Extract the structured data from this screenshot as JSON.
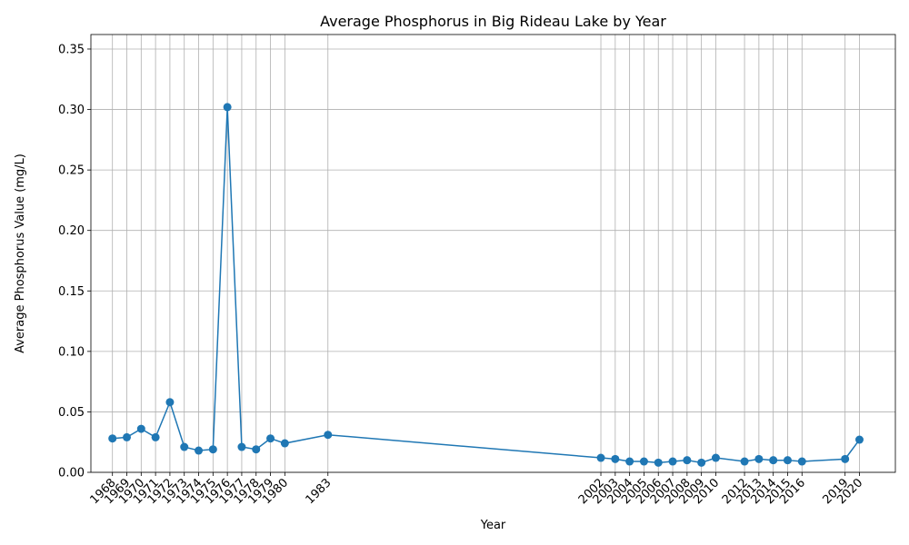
{
  "chart_data": {
    "type": "line",
    "title": "Average Phosphorus in Big Rideau Lake by Year",
    "xlabel": "Year",
    "ylabel": "Average Phosphorus Value (mg/L)",
    "x": [
      1968,
      1969,
      1970,
      1971,
      1972,
      1973,
      1974,
      1975,
      1976,
      1977,
      1978,
      1979,
      1980,
      1983,
      2002,
      2003,
      2004,
      2005,
      2006,
      2007,
      2008,
      2009,
      2010,
      2012,
      2013,
      2014,
      2015,
      2016,
      2019,
      2020
    ],
    "y": [
      0.028,
      0.029,
      0.036,
      0.029,
      0.058,
      0.021,
      0.018,
      0.019,
      0.302,
      0.021,
      0.019,
      0.028,
      0.024,
      0.031,
      0.012,
      0.011,
      0.009,
      0.009,
      0.008,
      0.009,
      0.01,
      0.008,
      0.012,
      0.009,
      0.011,
      0.01,
      0.01,
      0.009,
      0.011,
      0.027
    ],
    "x_ticks": [
      "1968",
      "1969",
      "1970",
      "1971",
      "1972",
      "1973",
      "1974",
      "1975",
      "1976",
      "1977",
      "1978",
      "1979",
      "1980",
      "1983",
      "2002",
      "2003",
      "2004",
      "2005",
      "2006",
      "2007",
      "2008",
      "2009",
      "2010",
      "2012",
      "2013",
      "2014",
      "2015",
      "2016",
      "2019",
      "2020"
    ],
    "y_ticks": [
      "0.00",
      "0.05",
      "0.10",
      "0.15",
      "0.20",
      "0.25",
      "0.30",
      "0.35"
    ],
    "ylim": [
      0,
      0.362
    ],
    "xlim": [
      1966.5,
      2022.5
    ],
    "grid": true,
    "marker": "circle",
    "color": "#1f77b4"
  }
}
